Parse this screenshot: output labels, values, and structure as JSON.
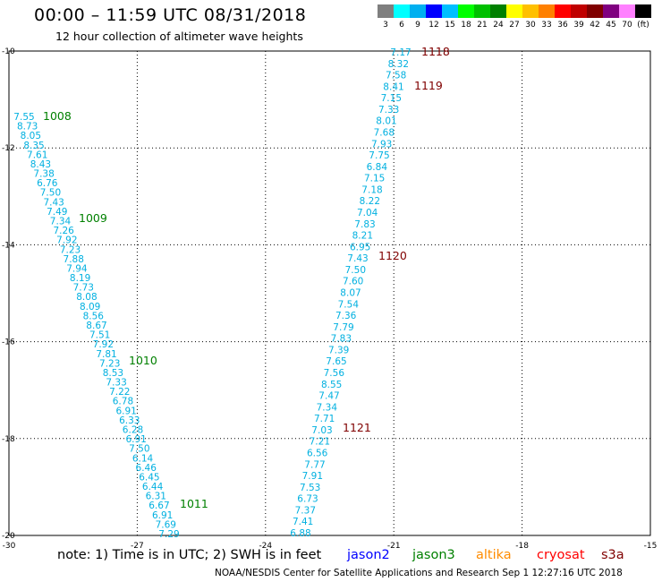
{
  "header": {
    "title": "00:00 – 11:59 UTC 08/31/2018",
    "subtitle": "12 hour collection of altimeter wave heights"
  },
  "colorbar": {
    "labels": [
      "3",
      "6",
      "9",
      "12",
      "15",
      "18",
      "21",
      "24",
      "27",
      "30",
      "33",
      "36",
      "39",
      "42",
      "45",
      "70",
      "(ft)"
    ],
    "colors": [
      "#7f7f7f",
      "#00ffff",
      "#00b0f0",
      "#0000ff",
      "#00bfff",
      "#00ff00",
      "#00c000",
      "#008000",
      "#ffff00",
      "#ffc000",
      "#ff8000",
      "#ff0000",
      "#c00000",
      "#800000",
      "#800080",
      "#ff80ff",
      "#000000"
    ]
  },
  "map": {
    "lon_range": [
      -30,
      -15
    ],
    "lat_range": [
      -20,
      -10
    ],
    "lon_ticks": [
      "-30",
      "-27",
      "-24",
      "-21",
      "-18",
      "-15"
    ],
    "lat_ticks": [
      "-10",
      "-12",
      "-14",
      "-16",
      "-18",
      "-20"
    ],
    "pass_labels": [
      {
        "text": "1008",
        "color": "#008000"
      },
      {
        "text": "1009",
        "color": "#008000"
      },
      {
        "text": "1010",
        "color": "#008000"
      },
      {
        "text": "1011",
        "color": "#008000"
      },
      {
        "text": "1118",
        "color": "#800000"
      },
      {
        "text": "1119",
        "color": "#800000"
      },
      {
        "text": "1120",
        "color": "#800000"
      },
      {
        "text": "1121",
        "color": "#800000"
      }
    ],
    "track_jason3": [
      "7.55",
      "8.73",
      "8.05",
      "8.35",
      "7.61",
      "8.43",
      "7.38",
      "6.76",
      "7.50",
      "7.43",
      "7.49",
      "7.34",
      "7.26",
      "7.92",
      "7.23",
      "7.88",
      "7.94",
      "8.19",
      "7.73",
      "8.08",
      "8.09",
      "8.56",
      "8.67",
      "7.51",
      "7.92",
      "7.81",
      "7.23",
      "8.53",
      "7.33",
      "7.22",
      "6.78",
      "6.91",
      "6.33",
      "6.28",
      "6.91",
      "7.50",
      "6.14",
      "6.46",
      "6.45",
      "6.44",
      "6.31",
      "6.67",
      "6.91",
      "7.69",
      "7.29"
    ],
    "track_cryosat": [
      "7.17",
      "8.32",
      "7.58",
      "8.41",
      "7.15",
      "7.33",
      "8.01",
      "7.68",
      "7.93",
      "7.75",
      "6.84",
      "7.15",
      "7.18",
      "8.22",
      "7.04",
      "7.83",
      "8.21",
      "6.95",
      "7.43",
      "7.50",
      "7.60",
      "8.07",
      "7.54",
      "7.36",
      "7.79",
      "7.83",
      "7.39",
      "7.65",
      "7.56",
      "8.55",
      "7.47",
      "7.34",
      "7.71",
      "7.03",
      "7.21",
      "6.56",
      "7.77",
      "7.91",
      "7.53",
      "6.73",
      "7.37",
      "7.41",
      "6.88"
    ],
    "track_color": "#00b0e0"
  },
  "legend": {
    "note": "note: 1) Time is in UTC; 2) SWH is in feet",
    "satellites": [
      {
        "name": "jason2",
        "color": "#0000ff"
      },
      {
        "name": "jason3",
        "color": "#008000"
      },
      {
        "name": "altika",
        "color": "#ff8c00"
      },
      {
        "name": "cryosat",
        "color": "#ff0000"
      },
      {
        "name": "s3a",
        "color": "#800000"
      }
    ]
  },
  "footer": "NOAA/NESDIS Center for Satellite Applications and Research   Sep  1 12:27:16 UTC 2018"
}
